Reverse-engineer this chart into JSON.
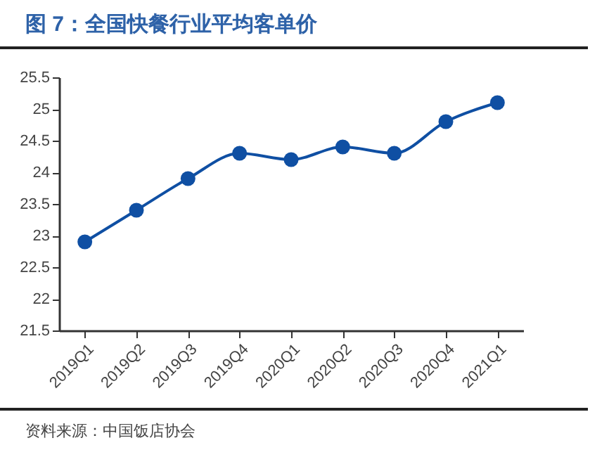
{
  "chart_data": {
    "type": "line",
    "title": "图 7：全国快餐行业平均客单价",
    "categories": [
      "2019Q1",
      "2019Q2",
      "2019Q3",
      "2019Q4",
      "2020Q1",
      "2020Q2",
      "2020Q3",
      "2020Q4",
      "2021Q1"
    ],
    "series": [
      {
        "color": "#0f4fa3",
        "values": [
          22.9,
          23.4,
          23.9,
          24.3,
          24.2,
          24.4,
          24.3,
          24.8,
          25.1
        ]
      }
    ],
    "ylim": [
      21.5,
      25.5
    ],
    "yticks": [
      21.5,
      22,
      22.5,
      23,
      23.5,
      24,
      24.5,
      25,
      25.5
    ],
    "grid": false,
    "marker": "circle",
    "line_style": "solid",
    "annotations": [
      "资料来源：中国饭店协会"
    ]
  }
}
